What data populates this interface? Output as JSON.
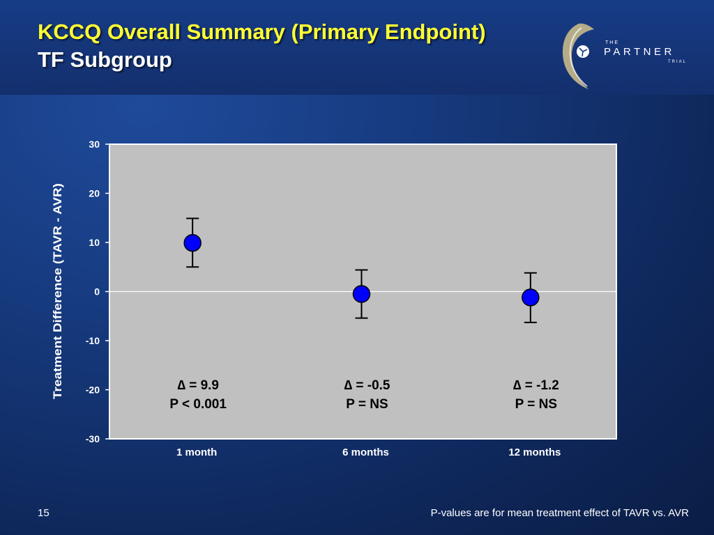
{
  "slide": {
    "title": "KCCQ Overall Summary (Primary Endpoint)",
    "subtitle": "TF Subgroup",
    "page_number": "15",
    "footnote": "P-values are for mean treatment effect of TAVR vs. AVR"
  },
  "logo": {
    "the": "THE",
    "name": "PARTNER",
    "trial": "TRIAL"
  },
  "colors": {
    "title": "#ffff33",
    "plot_background": "#c0c0c0",
    "marker_fill": "#0000ff",
    "error_bar": "#000000"
  },
  "chart_data": {
    "type": "scatter",
    "categories": [
      "1 month",
      "6 months",
      "12 months"
    ],
    "values": [
      9.9,
      -0.5,
      -1.2
    ],
    "error_low": [
      5.0,
      -5.4,
      -6.3
    ],
    "error_high": [
      14.9,
      4.4,
      3.8
    ],
    "ylabel": "Treatment Difference (TAVR - AVR)",
    "ylim": [
      -30,
      30
    ],
    "yticks": [
      30,
      20,
      10,
      0,
      -10,
      -20,
      -30
    ],
    "ytick_labels": [
      "30",
      "20",
      "10",
      "0",
      "-10",
      "-20",
      "-30"
    ],
    "reference_line": 0,
    "annotations": [
      {
        "category": "1 month",
        "delta": "∆ = 9.9",
        "p": "P < 0.001"
      },
      {
        "category": "6 months",
        "delta": "∆ = -0.5",
        "p": "P = NS"
      },
      {
        "category": "12 months",
        "delta": "∆ = -1.2",
        "p": "P = NS"
      }
    ]
  }
}
